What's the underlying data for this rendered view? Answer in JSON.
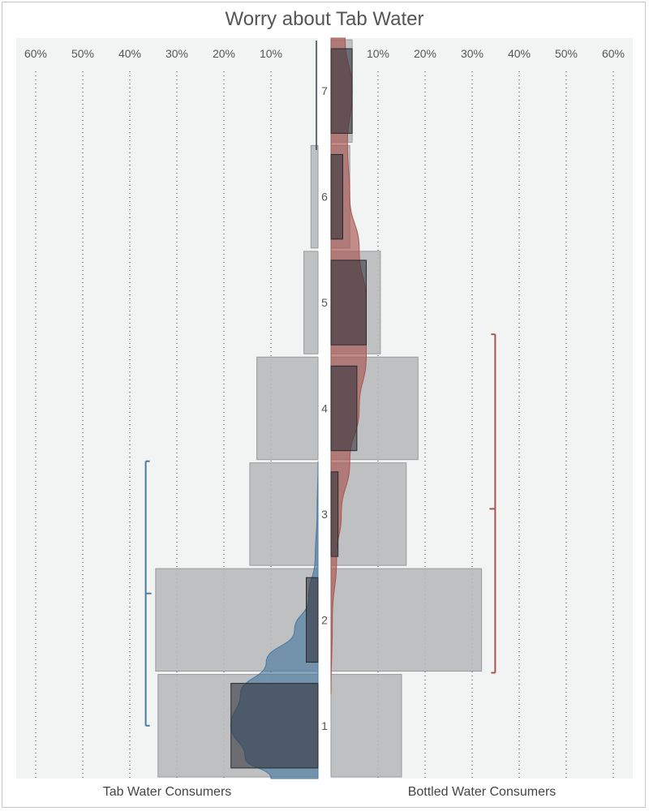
{
  "chart_data": {
    "type": "bar",
    "title": "Worry about Tab Water",
    "categories": [
      "1",
      "2",
      "3",
      "4",
      "5",
      "6",
      "7"
    ],
    "xlim": [
      0,
      60
    ],
    "tick_labels": [
      "60%",
      "50%",
      "40%",
      "30%",
      "20%",
      "10%",
      "10%",
      "20%",
      "30%",
      "40%",
      "50%",
      "60%"
    ],
    "ticks": [
      60,
      50,
      40,
      30,
      20,
      10
    ],
    "grid": true,
    "panels": [
      {
        "name": "Tab Water Consumers",
        "side": "left",
        "color": "#4a7aa0",
        "bar_values": [
          34,
          34.5,
          14.5,
          13,
          3,
          1.5,
          0
        ],
        "inner_values": [
          18.5,
          2.5,
          0,
          0,
          0,
          0,
          0
        ],
        "density": [
          {
            "y": 0.5,
            "v": 10
          },
          {
            "y": 0.7,
            "v": 15.5
          },
          {
            "y": 1.0,
            "v": 18.5
          },
          {
            "y": 1.3,
            "v": 16.5
          },
          {
            "y": 1.6,
            "v": 11
          },
          {
            "y": 1.9,
            "v": 5
          },
          {
            "y": 2.2,
            "v": 2
          },
          {
            "y": 2.6,
            "v": 0.6
          },
          {
            "y": 3.0,
            "v": 0.2
          },
          {
            "y": 3.5,
            "v": 0
          }
        ],
        "interval": {
          "low": 1,
          "mid": 2.25,
          "high": 3.5,
          "at": 38
        }
      },
      {
        "name": "Bottled Water Consumers",
        "side": "right",
        "color": "#a85550",
        "bar_values": [
          15,
          32,
          16,
          18.5,
          10.5,
          4,
          4.5
        ],
        "inner_values": [
          0,
          0,
          1.5,
          5.5,
          7.5,
          2.5,
          4.5
        ],
        "density": [
          {
            "y": 1.3,
            "v": 0
          },
          {
            "y": 2.0,
            "v": 0.3
          },
          {
            "y": 2.6,
            "v": 1.2
          },
          {
            "y": 3.0,
            "v": 2.2
          },
          {
            "y": 3.5,
            "v": 4
          },
          {
            "y": 4.0,
            "v": 6
          },
          {
            "y": 4.5,
            "v": 7.5
          },
          {
            "y": 5.0,
            "v": 7.5
          },
          {
            "y": 5.5,
            "v": 6
          },
          {
            "y": 6.0,
            "v": 4
          },
          {
            "y": 6.5,
            "v": 3.5
          },
          {
            "y": 7.0,
            "v": 4.5
          },
          {
            "y": 7.5,
            "v": 3
          }
        ],
        "interval": {
          "low": 1.5,
          "mid": 3.05,
          "high": 4.7,
          "at": 38
        }
      }
    ]
  }
}
